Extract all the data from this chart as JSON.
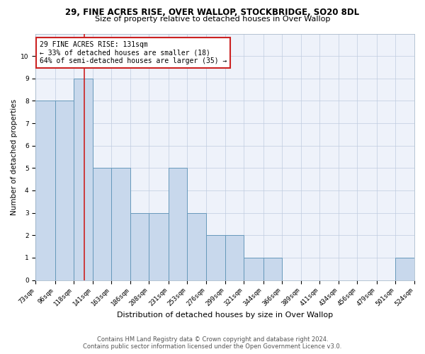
{
  "title1": "29, FINE ACRES RISE, OVER WALLOP, STOCKBRIDGE, SO20 8DL",
  "title2": "Size of property relative to detached houses in Over Wallop",
  "xlabel": "Distribution of detached houses by size in Over Wallop",
  "ylabel": "Number of detached properties",
  "footer1": "Contains HM Land Registry data © Crown copyright and database right 2024.",
  "footer2": "Contains public sector information licensed under the Open Government Licence v3.0.",
  "annotation_title": "29 FINE ACRES RISE: 131sqm",
  "annotation_line1": "← 33% of detached houses are smaller (18)",
  "annotation_line2": "64% of semi-detached houses are larger (35) →",
  "property_size": 131,
  "bin_edges": [
    73,
    96,
    118,
    141,
    163,
    186,
    208,
    231,
    253,
    276,
    299,
    321,
    344,
    366,
    389,
    411,
    434,
    456,
    479,
    501,
    524
  ],
  "bar_heights": [
    8,
    8,
    9,
    5,
    5,
    3,
    3,
    5,
    3,
    2,
    2,
    1,
    1,
    0,
    0,
    0,
    0,
    0,
    0,
    1
  ],
  "bar_color": "#c8d8ec",
  "bar_edge_color": "#6699bb",
  "vline_color": "#cc2222",
  "annotation_box_color": "#cc2222",
  "background_color": "#eef2fa",
  "grid_color": "#c0cce0",
  "ylim": [
    0,
    11
  ],
  "x_tick_labels": [
    "73sqm",
    "96sqm",
    "118sqm",
    "141sqm",
    "163sqm",
    "186sqm",
    "208sqm",
    "231sqm",
    "253sqm",
    "276sqm",
    "299sqm",
    "321sqm",
    "344sqm",
    "366sqm",
    "389sqm",
    "411sqm",
    "434sqm",
    "456sqm",
    "479sqm",
    "501sqm",
    "524sqm"
  ],
  "title1_fontsize": 8.5,
  "title2_fontsize": 8,
  "xlabel_fontsize": 8,
  "ylabel_fontsize": 7.5,
  "tick_fontsize": 6.5,
  "footer_fontsize": 6,
  "annot_fontsize": 7
}
